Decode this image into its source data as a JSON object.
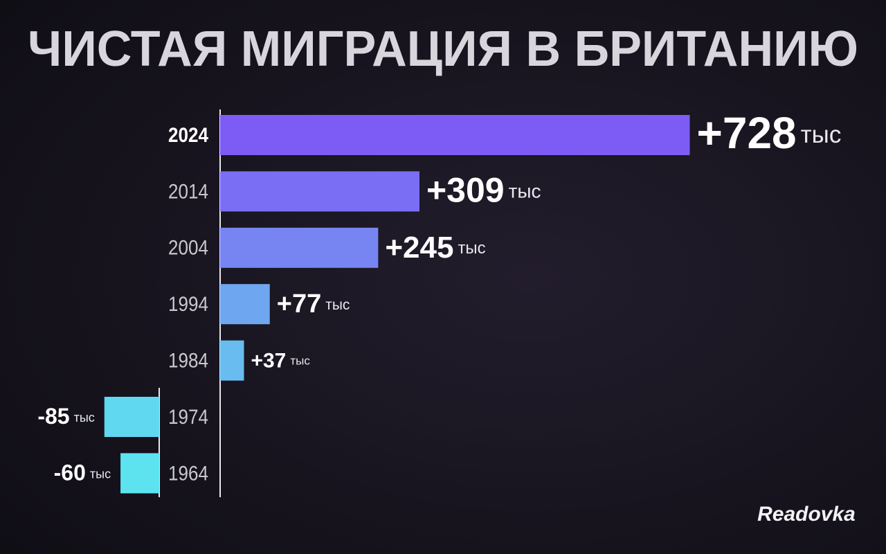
{
  "chart_data": {
    "type": "bar",
    "title": "ЧИСТАЯ МИГРАЦИЯ В БРИТАНИЮ",
    "categories": [
      "2024",
      "2014",
      "2004",
      "1994",
      "1984",
      "1974",
      "1964"
    ],
    "values": [
      728,
      309,
      245,
      77,
      37,
      -85,
      -60
    ],
    "value_labels": [
      "+728",
      "+309",
      "+245",
      "+77",
      "+37",
      "-85",
      "-60"
    ],
    "unit": "тыс",
    "colors": [
      "#7d5cf6",
      "#7a6ef4",
      "#7785f2",
      "#6fa6f0",
      "#69bcef",
      "#60d8ef",
      "#5de3f0"
    ],
    "brand": "Readovka"
  }
}
